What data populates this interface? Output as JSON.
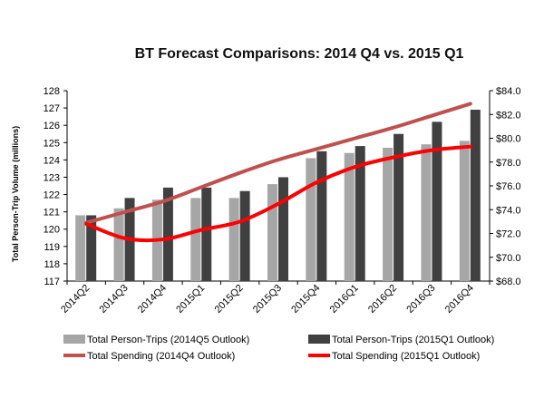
{
  "chart_data": {
    "type": "bar",
    "title": "BT Forecast Comparisons:  2014 Q4 vs. 2015 Q1",
    "ylabel": "Total Person-Trip Volume (millions)",
    "xlabel": "",
    "categories": [
      "2014Q2",
      "2014Q3",
      "2014Q4",
      "2015Q1",
      "2015Q2",
      "2015Q3",
      "2015Q4",
      "2016Q1",
      "2016Q2",
      "2016Q3",
      "2016Q4"
    ],
    "ylim": [
      117,
      128
    ],
    "y2lim": [
      68.0,
      84.0
    ],
    "yticks": [
      "117",
      "118",
      "119",
      "120",
      "121",
      "122",
      "123",
      "124",
      "125",
      "126",
      "127",
      "128"
    ],
    "y2ticks": [
      "$68.0",
      "$70.0",
      "$72.0",
      "$74.0",
      "$76.0",
      "$78.0",
      "$80.0",
      "$82.0",
      "$84.0"
    ],
    "series": [
      {
        "name": "Total Person-Trips (2014Q5 Outlook)",
        "kind": "bar",
        "axis": "left",
        "color": "#a6a6a6",
        "values": [
          120.8,
          121.2,
          121.7,
          121.8,
          121.8,
          122.6,
          124.1,
          124.4,
          124.7,
          124.9,
          125.1
        ]
      },
      {
        "name": "Total Person-Trips (2015Q1 Outlook)",
        "kind": "bar",
        "axis": "left",
        "color": "#404040",
        "values": [
          120.8,
          121.8,
          122.4,
          122.4,
          122.2,
          123.0,
          124.5,
          124.8,
          125.5,
          126.2,
          126.9
        ]
      },
      {
        "name": "Total Spending (2014Q4 Outlook)",
        "kind": "line",
        "axis": "right",
        "color": "#c0504d",
        "values": [
          72.9,
          73.8,
          74.7,
          75.9,
          77.1,
          78.2,
          79.1,
          80.0,
          80.9,
          81.9,
          82.9
        ]
      },
      {
        "name": "Total Spending (2015Q1 Outlook)",
        "kind": "line",
        "axis": "right",
        "color": "#ff0000",
        "values": [
          72.8,
          71.6,
          71.5,
          72.3,
          73.0,
          74.5,
          76.3,
          77.6,
          78.4,
          79.0,
          79.3
        ]
      }
    ],
    "legend_position": "bottom"
  }
}
